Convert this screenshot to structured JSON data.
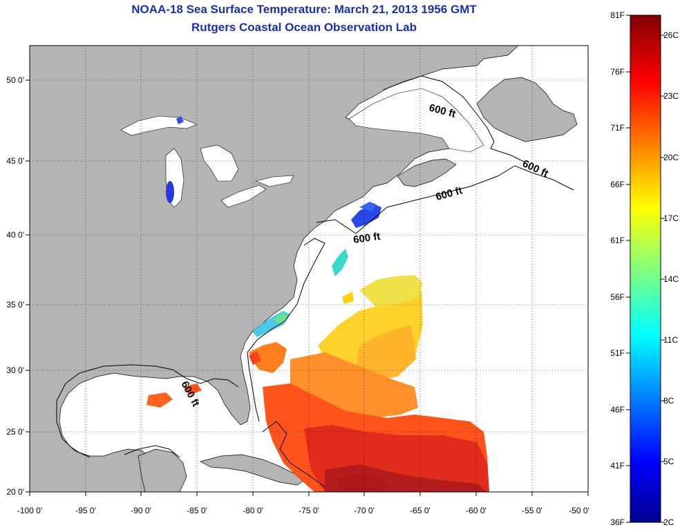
{
  "header": {
    "title": "NOAA-18 Sea Surface Temperature:  March 21, 2013 1956 GMT",
    "subtitle": "Rutgers Coastal Ocean Observation Lab"
  },
  "axes": {
    "x_ticks": [
      "-100 0'",
      "-95 0'",
      "-90 0'",
      "-85 0'",
      "-80 0'",
      "-75 0'",
      "-70 0'",
      "-65 0'",
      "-60 0'",
      "-55 0'",
      "-50 0'"
    ],
    "y_ticks": [
      "50 0'",
      "45 0'",
      "40 0'",
      "35 0'",
      "30 0'",
      "25 0'",
      "20 0'"
    ],
    "lon_range": [
      -100,
      -50
    ],
    "lat_range": [
      20,
      52
    ]
  },
  "contour_labels": [
    "600 ft",
    "600 ft",
    "600 ft",
    "600 ft",
    "600 ft"
  ],
  "colorbar": {
    "fahrenheit_labels": [
      "81F",
      "76F",
      "71F",
      "66F",
      "61F",
      "56F",
      "51F",
      "46F",
      "41F",
      "36F"
    ],
    "celsius_labels": [
      "26C",
      "23C",
      "20C",
      "17C",
      "14C",
      "11C",
      "8C",
      "5C",
      "2C"
    ],
    "range_f": [
      36,
      81
    ]
  },
  "colors": {
    "land": "#b4b4b4",
    "ocean_clouds": "#ffffff",
    "title": "#1a2fb0"
  }
}
